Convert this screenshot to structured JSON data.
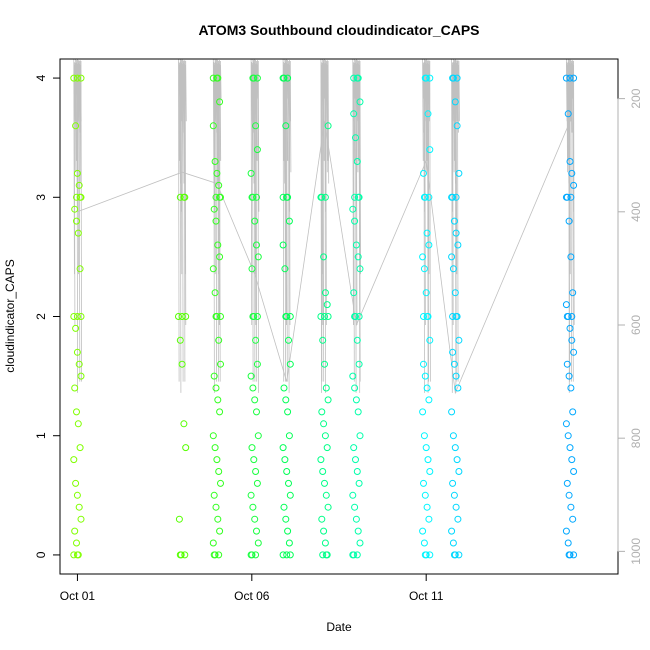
{
  "chart_data": {
    "type": "scatter",
    "title": "ATOM3 Southbound cloudindicator_CAPS",
    "xlabel": "Date",
    "ylabel": "cloudindicator_CAPS",
    "x_axis": {
      "type": "date",
      "range": [
        "2013-09-30T12:00",
        "2013-10-16T12:00"
      ],
      "ticks": [
        {
          "value": "2013-10-01",
          "label": "Oct 01"
        },
        {
          "value": "2013-10-06",
          "label": "Oct 06"
        },
        {
          "value": "2013-10-11",
          "label": "Oct 11"
        }
      ]
    },
    "y_axis": {
      "range": [
        -0.16,
        4.16
      ],
      "ticks": [
        0,
        1,
        2,
        3,
        4
      ]
    },
    "y2_axis": {
      "label": "",
      "reversed": true,
      "range": [
        130,
        1040
      ],
      "ticks": [
        200,
        400,
        600,
        800,
        1000
      ],
      "color": "#b0b0b0"
    },
    "marker": "open-circle",
    "line_color": "#c0c0c0",
    "grid": false,
    "clusters": [
      {
        "x": "2013-10-01T00:00",
        "color": "#80ff00",
        "values": [
          4.0,
          3.6,
          3.2,
          3.1,
          3.0,
          2.9,
          2.8,
          2.7,
          2.4,
          2.0,
          1.9,
          1.7,
          1.6,
          1.5,
          1.4,
          1.2,
          1.1,
          0.9,
          0.8,
          0.6,
          0.5,
          0.4,
          0.3,
          0.2,
          0.1,
          0.0
        ]
      },
      {
        "x": "2013-10-04T00:00",
        "color": "#55ff00",
        "values": [
          3.0,
          2.0,
          1.8,
          1.6,
          1.1,
          0.9,
          0.3,
          0.0
        ]
      },
      {
        "x": "2013-10-05T00:00",
        "color": "#33ff20",
        "values": [
          4.0,
          3.8,
          3.6,
          3.3,
          3.2,
          3.1,
          3.0,
          2.9,
          2.8,
          2.6,
          2.5,
          2.4,
          2.2,
          2.0,
          1.8,
          1.6,
          1.5,
          1.4,
          1.3,
          1.2,
          1.0,
          0.9,
          0.8,
          0.7,
          0.6,
          0.5,
          0.4,
          0.3,
          0.2,
          0.1,
          0.0
        ]
      },
      {
        "x": "2013-10-06T02:00",
        "color": "#1aff40",
        "values": [
          4.0,
          3.6,
          3.4,
          3.2,
          3.0,
          2.8,
          2.6,
          2.5,
          2.4,
          2.0,
          1.8,
          1.6,
          1.5,
          1.4,
          1.3,
          1.2,
          1.0,
          0.9,
          0.8,
          0.7,
          0.6,
          0.5,
          0.4,
          0.3,
          0.2,
          0.1,
          0.0
        ]
      },
      {
        "x": "2013-10-07T00:00",
        "color": "#00ff55",
        "values": [
          4.0,
          3.6,
          3.0,
          2.8,
          2.6,
          2.4,
          2.0,
          1.8,
          1.6,
          1.4,
          1.3,
          1.2,
          1.0,
          0.9,
          0.8,
          0.7,
          0.6,
          0.5,
          0.4,
          0.3,
          0.2,
          0.1,
          0.0
        ]
      },
      {
        "x": "2013-10-08T02:00",
        "color": "#00ff88",
        "values": [
          3.6,
          3.0,
          2.5,
          2.2,
          2.1,
          2.0,
          1.8,
          1.6,
          1.4,
          1.3,
          1.2,
          1.1,
          1.0,
          0.9,
          0.8,
          0.7,
          0.6,
          0.5,
          0.4,
          0.3,
          0.2,
          0.1,
          0.0
        ]
      },
      {
        "x": "2013-10-09T00:00",
        "color": "#00ffaa",
        "values": [
          4.0,
          3.8,
          3.7,
          3.5,
          3.3,
          3.0,
          2.9,
          2.8,
          2.6,
          2.5,
          2.4,
          2.2,
          2.0,
          1.8,
          1.6,
          1.5,
          1.4,
          1.3,
          1.2,
          1.0,
          0.9,
          0.8,
          0.7,
          0.6,
          0.5,
          0.4,
          0.3,
          0.2,
          0.1,
          0.0
        ]
      },
      {
        "x": "2013-10-11T00:00",
        "color": "#00f5ff",
        "values": [
          4.0,
          3.7,
          3.4,
          3.2,
          3.0,
          2.7,
          2.6,
          2.5,
          2.4,
          2.2,
          2.0,
          1.8,
          1.6,
          1.5,
          1.4,
          1.3,
          1.2,
          1.0,
          0.9,
          0.8,
          0.7,
          0.6,
          0.5,
          0.4,
          0.3,
          0.2,
          0.1,
          0.0
        ]
      },
      {
        "x": "2013-10-11T20:00",
        "color": "#00d8ff",
        "values": [
          4.0,
          3.8,
          3.6,
          3.2,
          3.0,
          2.8,
          2.7,
          2.6,
          2.5,
          2.4,
          2.2,
          2.0,
          1.8,
          1.7,
          1.6,
          1.5,
          1.4,
          1.2,
          1.0,
          0.9,
          0.8,
          0.7,
          0.6,
          0.5,
          0.4,
          0.3,
          0.2,
          0.1,
          0.0
        ]
      },
      {
        "x": "2013-10-15T03:00",
        "color": "#00a8ff",
        "values": [
          4.0,
          3.7,
          3.3,
          3.2,
          3.1,
          3.0,
          2.8,
          2.5,
          2.2,
          2.1,
          2.0,
          1.9,
          1.8,
          1.7,
          1.6,
          1.5,
          1.4,
          1.2,
          1.1,
          1.0,
          0.9,
          0.8,
          0.7,
          0.6,
          0.5,
          0.4,
          0.3,
          0.2,
          0.1,
          0.0
        ]
      }
    ],
    "line_y2": [
      400,
      330,
      350,
      510,
      700,
      240,
      600,
      310,
      720,
      240,
      260,
      700,
      240,
      200
    ]
  }
}
